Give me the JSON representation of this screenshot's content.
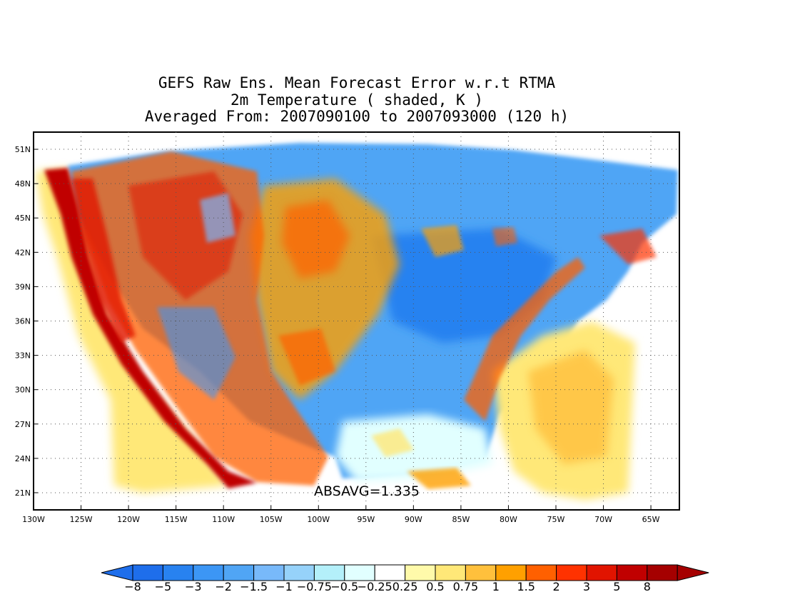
{
  "title": {
    "line1": "GEFS Raw Ens. Mean Forecast Error w.r.t RTMA",
    "line2": "2m Temperature ( shaded, K )",
    "line3": "Averaged From: 2007090100 to 2007093000 (120 h)"
  },
  "map": {
    "projection": "lat-lon",
    "lon_range": [
      -130,
      -62
    ],
    "lat_range": [
      19.5,
      52.5
    ],
    "grid": "dotted",
    "lat_ticks": [
      "51N",
      "48N",
      "45N",
      "42N",
      "39N",
      "36N",
      "33N",
      "30N",
      "27N",
      "24N",
      "21N"
    ],
    "lat_values": [
      51,
      48,
      45,
      42,
      39,
      36,
      33,
      30,
      27,
      24,
      21
    ],
    "lon_ticks": [
      "130W",
      "125W",
      "120W",
      "115W",
      "110W",
      "105W",
      "100W",
      "95W",
      "90W",
      "85W",
      "80W",
      "75W",
      "70W",
      "65W"
    ],
    "lon_values": [
      -130,
      -125,
      -120,
      -115,
      -110,
      -105,
      -100,
      -95,
      -90,
      -85,
      -80,
      -75,
      -70,
      -65
    ]
  },
  "stat_label": "ABSAVG=1.335",
  "colorbar": {
    "labels": [
      "−8",
      "−5",
      "−3",
      "−2",
      "−1.5",
      "−1",
      "−0.75",
      "−0.5",
      "−0.25",
      "0.25",
      "0.5",
      "0.75",
      "1",
      "1.5",
      "2",
      "3",
      "5",
      "8"
    ],
    "colors": [
      "#1e6eeb",
      "#2882f0",
      "#3c96f5",
      "#50a5f5",
      "#78b9fa",
      "#96d2fa",
      "#b4f0fa",
      "#e1ffff",
      "#ffffff",
      "#fffaaa",
      "#ffe878",
      "#ffc03c",
      "#ffa000",
      "#ff6000",
      "#ff3200",
      "#e11400",
      "#c00000",
      "#a50000"
    ],
    "end_low": "#1e6eeb",
    "end_high": "#a50000"
  },
  "regions": [
    {
      "name": "west-coast-warm",
      "color": "#e11400"
    },
    {
      "name": "rockies-mixed",
      "color": "#ff6000"
    },
    {
      "name": "plains-warm",
      "color": "#ffa000"
    },
    {
      "name": "east-cold",
      "color": "#3c96f5"
    },
    {
      "name": "atlantic-warm",
      "color": "#ffe878"
    },
    {
      "name": "pacific-warm",
      "color": "#ffc03c"
    }
  ]
}
